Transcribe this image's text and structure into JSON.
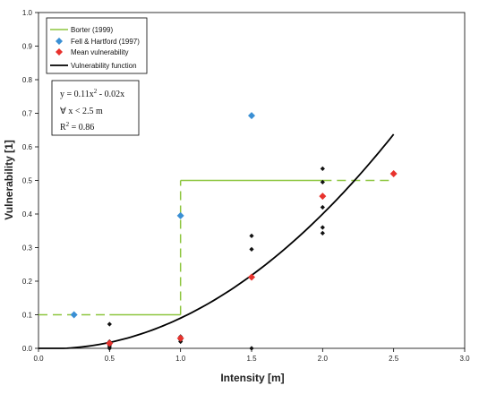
{
  "chart_data": {
    "type": "scatter",
    "xlabel": "Intensity [m]",
    "ylabel": "Vulnerability [1]",
    "xlim": [
      0,
      3
    ],
    "ylim": [
      0,
      1
    ],
    "x_ticks": [
      0,
      0.5,
      1,
      1.5,
      2,
      2.5,
      3
    ],
    "x_tick_labels": [
      "0.0",
      "0.5",
      "1.0",
      "1.5",
      "2.0",
      "2.5",
      "3.0"
    ],
    "y_ticks": [
      0,
      0.1,
      0.2,
      0.3,
      0.4,
      0.5,
      0.6,
      0.7,
      0.8,
      0.9,
      1
    ],
    "y_tick_labels": [
      "0.0",
      "0.1",
      "0.2",
      "0.3",
      "0.4",
      "0.5",
      "0.6",
      "0.7",
      "0.8",
      "0.9",
      "1.0"
    ],
    "grid": false,
    "legend_position": "top-left",
    "series": [
      {
        "name": "Borter (1999)",
        "kind": "step-line",
        "color": "#8dc63f",
        "solid_segments": [
          [
            [
              0.5,
              0.1
            ],
            [
              1.0,
              0.1
            ]
          ],
          [
            [
              1.0,
              0.5
            ],
            [
              2.0,
              0.5
            ]
          ]
        ],
        "dashed_segments": [
          [
            [
              0.0,
              0.1
            ],
            [
              0.5,
              0.1
            ]
          ],
          [
            [
              1.0,
              0.1
            ],
            [
              1.0,
              0.5
            ]
          ],
          [
            [
              2.0,
              0.5
            ],
            [
              2.5,
              0.5
            ]
          ]
        ]
      },
      {
        "name": "Fell & Hartford (1997)",
        "kind": "points",
        "marker": "diamond",
        "color": "#3a8fd4",
        "points": [
          [
            0.25,
            0.1
          ],
          [
            1.0,
            0.395
          ],
          [
            1.5,
            0.693
          ]
        ]
      },
      {
        "name": "Mean vulnerability",
        "kind": "points",
        "marker": "diamond",
        "color": "#e8322d",
        "points": [
          [
            0.5,
            0.015
          ],
          [
            1.0,
            0.03
          ],
          [
            1.5,
            0.212
          ],
          [
            2.0,
            0.453
          ],
          [
            2.5,
            0.52
          ]
        ]
      },
      {
        "name": "Vulnerability function",
        "kind": "curve",
        "color": "#000000",
        "coefficients": {
          "a": 0.11,
          "b": -0.02
        },
        "x_range": [
          0,
          2.5
        ]
      },
      {
        "name": "",
        "kind": "points",
        "marker": "diamond-small",
        "color": "#111111",
        "points": [
          [
            0.5,
            0.0
          ],
          [
            0.5,
            0.005
          ],
          [
            0.5,
            0.01
          ],
          [
            0.5,
            0.02
          ],
          [
            0.5,
            0.072
          ],
          [
            1.0,
            0.02
          ],
          [
            1.0,
            0.025
          ],
          [
            1.0,
            0.035
          ],
          [
            1.5,
            0.0
          ],
          [
            1.5,
            0.295
          ],
          [
            1.5,
            0.335
          ],
          [
            2.0,
            0.343
          ],
          [
            2.0,
            0.36
          ],
          [
            2.0,
            0.42
          ],
          [
            2.0,
            0.495
          ],
          [
            2.0,
            0.535
          ]
        ]
      }
    ],
    "legend_entries": [
      "Borter (1999)",
      "Fell & Hartford (1997)",
      "Mean vulnerability",
      "Vulnerability function"
    ],
    "annotation": {
      "line1_parts": [
        "y = 0.11x",
        "2",
        " - 0.02x"
      ],
      "line2": "∀ x < 2.5 m",
      "line3_parts": [
        "R",
        "2",
        " = 0.86"
      ]
    }
  }
}
